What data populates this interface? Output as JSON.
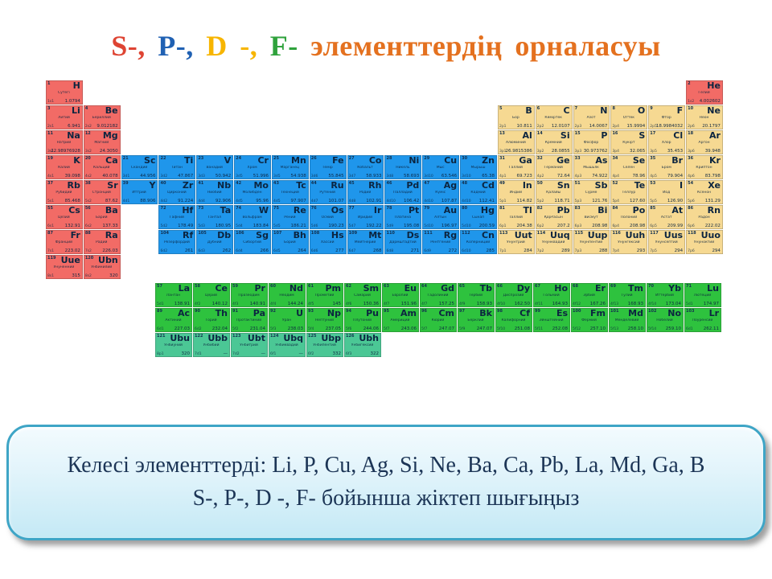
{
  "title": {
    "parts": [
      {
        "text": "S-,",
        "color": "#de4433"
      },
      {
        "text": " P-,",
        "color": "#2061b3"
      },
      {
        "text": " D -,",
        "color": "#f7b500"
      },
      {
        "text": " F-",
        "color": "#2fa23c"
      },
      {
        "text": "  элементтердің орналасуы",
        "color": "#e4711f"
      }
    ]
  },
  "table": {
    "block_colors": {
      "s": "#f26b66",
      "p": "#f6d992",
      "d": "#1f96eb",
      "f": "#2ec23e",
      "fx": "#4bc795"
    },
    "fields": [
      "number",
      "symbol",
      "name",
      "mass",
      "config",
      "row",
      "col",
      "block"
    ],
    "main_elements": [
      [
        1,
        "H",
        "Сутегі",
        "1.0794",
        "1s1",
        1,
        1,
        "s"
      ],
      [
        2,
        "He",
        "Гелий",
        "4.002602",
        "1s2",
        1,
        18,
        "s"
      ],
      [
        3,
        "Li",
        "Литий",
        "6.941",
        "2s1",
        2,
        1,
        "s"
      ],
      [
        4,
        "Be",
        "Бериллий",
        "9.012182",
        "2s2",
        2,
        2,
        "s"
      ],
      [
        5,
        "B",
        "Бор",
        "10.811",
        "2p1",
        2,
        13,
        "p"
      ],
      [
        6,
        "C",
        "Көміртек",
        "12.0107",
        "2p2",
        2,
        14,
        "p"
      ],
      [
        7,
        "N",
        "Азот",
        "14.0067",
        "2p3",
        2,
        15,
        "p"
      ],
      [
        8,
        "O",
        "Оттек",
        "15.9994",
        "2p4",
        2,
        16,
        "p"
      ],
      [
        9,
        "F",
        "Фтор",
        "18.9984032",
        "2p5",
        2,
        17,
        "p"
      ],
      [
        10,
        "Ne",
        "Неон",
        "20.1797",
        "2p6",
        2,
        18,
        "p"
      ],
      [
        11,
        "Na",
        "Натрий",
        "22.98976928",
        "3s1",
        3,
        1,
        "s"
      ],
      [
        12,
        "Mg",
        "Магний",
        "24.3050",
        "3s2",
        3,
        2,
        "s"
      ],
      [
        13,
        "Al",
        "Алюминий",
        "26.9815386",
        "3p1",
        3,
        13,
        "p"
      ],
      [
        14,
        "Si",
        "Кремний",
        "28.0855",
        "3p2",
        3,
        14,
        "p"
      ],
      [
        15,
        "P",
        "Фосфор",
        "30.973762",
        "3p3",
        3,
        15,
        "p"
      ],
      [
        16,
        "S",
        "Күкірт",
        "32.065",
        "3p4",
        3,
        16,
        "p"
      ],
      [
        17,
        "Cl",
        "Хлор",
        "35.453",
        "3p5",
        3,
        17,
        "p"
      ],
      [
        18,
        "Ar",
        "Аргон",
        "39.948",
        "3p6",
        3,
        18,
        "p"
      ],
      [
        19,
        "K",
        "Калий",
        "39.098",
        "4s1",
        4,
        1,
        "s"
      ],
      [
        20,
        "Ca",
        "Кальций",
        "40.078",
        "4s2",
        4,
        2,
        "s"
      ],
      [
        21,
        "Sc",
        "Скандий",
        "44.956",
        "3d1",
        4,
        3,
        "d"
      ],
      [
        22,
        "Ti",
        "Титан",
        "47.867",
        "3d2",
        4,
        4,
        "d"
      ],
      [
        23,
        "V",
        "Ванадий",
        "50.942",
        "3d3",
        4,
        5,
        "d"
      ],
      [
        24,
        "Cr",
        "Хром",
        "51.996",
        "3d5",
        4,
        6,
        "d"
      ],
      [
        25,
        "Mn",
        "Марганец",
        "54.938",
        "3d5",
        4,
        7,
        "d"
      ],
      [
        26,
        "Fe",
        "Темір",
        "55.845",
        "3d6",
        4,
        8,
        "d"
      ],
      [
        27,
        "Co",
        "Кобальт",
        "58.933",
        "3d7",
        4,
        9,
        "d"
      ],
      [
        28,
        "Ni",
        "Никель",
        "58.693",
        "3d8",
        4,
        10,
        "d"
      ],
      [
        29,
        "Cu",
        "Мыс",
        "63.546",
        "3d10",
        4,
        11,
        "d"
      ],
      [
        30,
        "Zn",
        "Мырыш",
        "65.38",
        "3d10",
        4,
        12,
        "d"
      ],
      [
        31,
        "Ga",
        "Галлий",
        "69.723",
        "4p1",
        4,
        13,
        "p"
      ],
      [
        32,
        "Ge",
        "Германий",
        "72.64",
        "4p2",
        4,
        14,
        "p"
      ],
      [
        33,
        "As",
        "Мышьяк",
        "74.922",
        "4p3",
        4,
        15,
        "p"
      ],
      [
        34,
        "Se",
        "Селен",
        "78.96",
        "4p4",
        4,
        16,
        "p"
      ],
      [
        35,
        "Br",
        "Бром",
        "79.904",
        "4p5",
        4,
        17,
        "p"
      ],
      [
        36,
        "Kr",
        "Криптон",
        "83.798",
        "4p6",
        4,
        18,
        "p"
      ],
      [
        37,
        "Rb",
        "Рубидий",
        "85.468",
        "5s1",
        5,
        1,
        "s"
      ],
      [
        38,
        "Sr",
        "Стронций",
        "87.62",
        "5s2",
        5,
        2,
        "s"
      ],
      [
        39,
        "Y",
        "Иттрий",
        "88.906",
        "4d1",
        5,
        3,
        "d"
      ],
      [
        40,
        "Zr",
        "Цирконий",
        "91.224",
        "4d2",
        5,
        4,
        "d"
      ],
      [
        41,
        "Nb",
        "Ниобий",
        "92.906",
        "4d4",
        5,
        5,
        "d"
      ],
      [
        42,
        "Mo",
        "Молибден",
        "95.96",
        "4d5",
        5,
        6,
        "d"
      ],
      [
        43,
        "Tc",
        "Технеций",
        "97.907",
        "4d5",
        5,
        7,
        "d"
      ],
      [
        44,
        "Ru",
        "Рутений",
        "101.07",
        "4d7",
        5,
        8,
        "d"
      ],
      [
        45,
        "Rh",
        "Родий",
        "102.91",
        "4d8",
        5,
        9,
        "d"
      ],
      [
        46,
        "Pd",
        "Палладий",
        "106.42",
        "4d10",
        5,
        10,
        "d"
      ],
      [
        47,
        "Ag",
        "Күміс",
        "107.87",
        "4d10",
        5,
        11,
        "d"
      ],
      [
        48,
        "Cd",
        "Кадмий",
        "112.41",
        "4d10",
        5,
        12,
        "d"
      ],
      [
        49,
        "In",
        "Индий",
        "114.82",
        "5p1",
        5,
        13,
        "p"
      ],
      [
        50,
        "Sn",
        "Қалайы",
        "118.71",
        "5p2",
        5,
        14,
        "p"
      ],
      [
        51,
        "Sb",
        "Сүрме",
        "121.76",
        "5p3",
        5,
        15,
        "p"
      ],
      [
        52,
        "Te",
        "Теллур",
        "127.60",
        "5p4",
        5,
        16,
        "p"
      ],
      [
        53,
        "I",
        "Иод",
        "126.90",
        "5p5",
        5,
        17,
        "p"
      ],
      [
        54,
        "Xe",
        "Ксенон",
        "131.29",
        "5p6",
        5,
        18,
        "p"
      ],
      [
        55,
        "Cs",
        "Цезий",
        "132.91",
        "6s1",
        6,
        1,
        "s"
      ],
      [
        56,
        "Ba",
        "Барий",
        "137.33",
        "6s2",
        6,
        2,
        "s"
      ],
      [
        72,
        "Hf",
        "Гафний",
        "178.49",
        "5d2",
        6,
        4,
        "d"
      ],
      [
        73,
        "Ta",
        "Тантал",
        "180.95",
        "5d3",
        6,
        5,
        "d"
      ],
      [
        74,
        "W",
        "Вольфрам",
        "183.84",
        "5d4",
        6,
        6,
        "d"
      ],
      [
        75,
        "Re",
        "Рений",
        "186.21",
        "5d5",
        6,
        7,
        "d"
      ],
      [
        76,
        "Os",
        "Осмий",
        "190.23",
        "5d6",
        6,
        8,
        "d"
      ],
      [
        77,
        "Ir",
        "Иридий",
        "192.22",
        "5d7",
        6,
        9,
        "d"
      ],
      [
        78,
        "Pt",
        "Платина",
        "195.08",
        "5d9",
        6,
        10,
        "d"
      ],
      [
        79,
        "Au",
        "Алтын",
        "196.97",
        "5d10",
        6,
        11,
        "d"
      ],
      [
        80,
        "Hg",
        "Сынап",
        "200.59",
        "5d10",
        6,
        12,
        "d"
      ],
      [
        81,
        "Tl",
        "Таллий",
        "204.38",
        "6p1",
        6,
        13,
        "p"
      ],
      [
        82,
        "Pb",
        "Қорғасын",
        "207.2",
        "6p2",
        6,
        14,
        "p"
      ],
      [
        83,
        "Bi",
        "Висмут",
        "208.98",
        "6p3",
        6,
        15,
        "p"
      ],
      [
        84,
        "Po",
        "Полоний",
        "208.98",
        "6p4",
        6,
        16,
        "p"
      ],
      [
        85,
        "At",
        "Астат",
        "209.99",
        "6p5",
        6,
        17,
        "p"
      ],
      [
        86,
        "Rn",
        "Радон",
        "222.02",
        "6p6",
        6,
        18,
        "p"
      ],
      [
        87,
        "Fr",
        "Франций",
        "223.02",
        "7s1",
        7,
        1,
        "s"
      ],
      [
        88,
        "Ra",
        "Радий",
        "226.03",
        "7s2",
        7,
        2,
        "s"
      ],
      [
        104,
        "Rf",
        "Резерфордий",
        "261",
        "6d2",
        7,
        4,
        "d"
      ],
      [
        105,
        "Db",
        "Дубний",
        "262",
        "6d3",
        7,
        5,
        "d"
      ],
      [
        106,
        "Sg",
        "Сиборгий",
        "266",
        "6d4",
        7,
        6,
        "d"
      ],
      [
        107,
        "Bh",
        "Борий",
        "264",
        "6d5",
        7,
        7,
        "d"
      ],
      [
        108,
        "Hs",
        "Хассий",
        "277",
        "6d6",
        7,
        8,
        "d"
      ],
      [
        109,
        "Mt",
        "Мейтнерий",
        "268",
        "6d7",
        7,
        9,
        "d"
      ],
      [
        110,
        "Ds",
        "Дармштадтий",
        "271",
        "6d8",
        7,
        10,
        "d"
      ],
      [
        111,
        "Rg",
        "Рентгений",
        "272",
        "6d9",
        7,
        11,
        "d"
      ],
      [
        112,
        "Cn",
        "Коперниций",
        "285",
        "6d10",
        7,
        12,
        "d"
      ],
      [
        113,
        "Uut",
        "Унунтрий",
        "284",
        "7p1",
        7,
        13,
        "p"
      ],
      [
        114,
        "Uuq",
        "Унунквадий",
        "289",
        "7p2",
        7,
        14,
        "p"
      ],
      [
        115,
        "Uup",
        "Унунпентий",
        "288",
        "7p3",
        7,
        15,
        "p"
      ],
      [
        116,
        "Uuh",
        "Унунгексий",
        "293",
        "7p4",
        7,
        16,
        "p"
      ],
      [
        117,
        "Uus",
        "Унунсептий",
        "294",
        "7p5",
        7,
        17,
        "p"
      ],
      [
        118,
        "Uuo",
        "Унуноктий",
        "294",
        "7p6",
        7,
        18,
        "p"
      ],
      [
        119,
        "Uue",
        "Унуненний",
        "315",
        "8s1",
        8,
        1,
        "s"
      ],
      [
        120,
        "Ubn",
        "Унбинилий",
        "320",
        "8s2",
        8,
        2,
        "s"
      ]
    ],
    "f_elements": [
      [
        57,
        "La",
        "Лантан",
        "138.91",
        "5d1",
        1,
        1,
        "f"
      ],
      [
        58,
        "Ce",
        "Церий",
        "140.12",
        "4f2",
        1,
        2,
        "f"
      ],
      [
        59,
        "Pr",
        "Празеодим",
        "140.91",
        "4f3",
        1,
        3,
        "f"
      ],
      [
        60,
        "Nd",
        "Неодим",
        "144.24",
        "4f4",
        1,
        4,
        "f"
      ],
      [
        61,
        "Pm",
        "Прометий",
        "145",
        "4f5",
        1,
        5,
        "f"
      ],
      [
        62,
        "Sm",
        "Самарий",
        "150.36",
        "4f6",
        1,
        6,
        "f"
      ],
      [
        63,
        "Eu",
        "Европий",
        "151.96",
        "4f7",
        1,
        7,
        "f"
      ],
      [
        64,
        "Gd",
        "Гадолиний",
        "157.25",
        "4f7",
        1,
        8,
        "f"
      ],
      [
        65,
        "Tb",
        "Тербий",
        "158.93",
        "4f9",
        1,
        9,
        "f"
      ],
      [
        66,
        "Dy",
        "Диспрозий",
        "162.50",
        "4f10",
        1,
        10,
        "f"
      ],
      [
        67,
        "Ho",
        "Гольмий",
        "164.93",
        "4f11",
        1,
        11,
        "f"
      ],
      [
        68,
        "Er",
        "Эрбий",
        "167.26",
        "4f12",
        1,
        12,
        "f"
      ],
      [
        69,
        "Tm",
        "Тулий",
        "168.93",
        "4f13",
        1,
        13,
        "f"
      ],
      [
        70,
        "Yb",
        "Иттербий",
        "173.04",
        "4f14",
        1,
        14,
        "f"
      ],
      [
        71,
        "Lu",
        "Лютеций",
        "174.97",
        "5d1",
        1,
        15,
        "f"
      ],
      [
        89,
        "Ac",
        "Актиний",
        "227.03",
        "6d1",
        2,
        1,
        "f"
      ],
      [
        90,
        "Th",
        "Торий",
        "232.04",
        "6d2",
        2,
        2,
        "f"
      ],
      [
        91,
        "Pa",
        "Протактиний",
        "231.04",
        "5f2",
        2,
        3,
        "f"
      ],
      [
        92,
        "U",
        "Уран",
        "238.03",
        "5f3",
        2,
        4,
        "f"
      ],
      [
        93,
        "Np",
        "Нептуний",
        "237.05",
        "5f4",
        2,
        5,
        "f"
      ],
      [
        94,
        "Pu",
        "Плутоний",
        "244.06",
        "5f6",
        2,
        6,
        "f"
      ],
      [
        95,
        "Am",
        "Америций",
        "243.06",
        "5f7",
        2,
        7,
        "f"
      ],
      [
        96,
        "Cm",
        "Кюрий",
        "247.07",
        "5f7",
        2,
        8,
        "f"
      ],
      [
        97,
        "Bk",
        "Берклий",
        "247.07",
        "5f9",
        2,
        9,
        "f"
      ],
      [
        98,
        "Cf",
        "Калифорний",
        "251.08",
        "5f10",
        2,
        10,
        "f"
      ],
      [
        99,
        "Es",
        "Эйнштейний",
        "252.08",
        "5f11",
        2,
        11,
        "f"
      ],
      [
        100,
        "Fm",
        "Фермий",
        "257.10",
        "5f12",
        2,
        12,
        "f"
      ],
      [
        101,
        "Md",
        "Менделевий",
        "258.10",
        "5f13",
        2,
        13,
        "f"
      ],
      [
        102,
        "No",
        "Нобелий",
        "259.10",
        "5f14",
        2,
        14,
        "f"
      ],
      [
        103,
        "Lr",
        "Лоуренсий",
        "262.11",
        "6d1",
        2,
        15,
        "f"
      ],
      [
        121,
        "Ubu",
        "Унбиуний",
        "320",
        "8p1",
        3,
        1,
        "fx"
      ],
      [
        122,
        "Ubb",
        "Унбибий",
        "—",
        "7d1",
        3,
        2,
        "fx"
      ],
      [
        123,
        "Ubt",
        "Унбитрий",
        "—",
        "7d2",
        3,
        3,
        "fx"
      ],
      [
        124,
        "Ubq",
        "Унбиквадий",
        "—",
        "6f1",
        3,
        4,
        "fx"
      ],
      [
        125,
        "Ubp",
        "Унбипентий",
        "332",
        "6f2",
        3,
        5,
        "fx"
      ],
      [
        126,
        "Ubh",
        "Унбигексий",
        "322",
        "6f3",
        3,
        6,
        "fx"
      ]
    ]
  },
  "task_box": {
    "line1": "Келесі элементтерді: Li, P, Cu, Ag, Si, Ne, Ba, Ca, Pb, La,  Md, Ga, B",
    "line2": "S-, P-, D -, F- бойынша жіктеп шығыңыз"
  }
}
